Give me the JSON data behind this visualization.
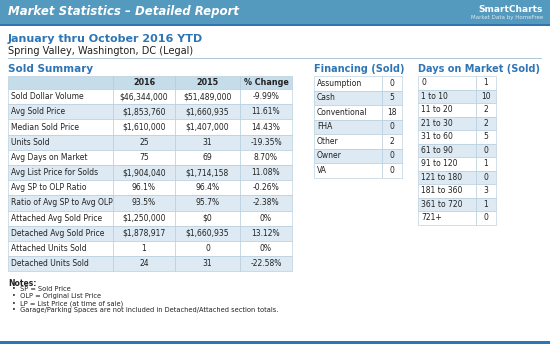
{
  "header_text": "Market Statistics – Detailed Report",
  "header_bg": "#4a8fba",
  "header_text_color": "#ffffff",
  "date_label": "January thru October 2016 YTD",
  "location_label": "Spring Valley, Washington, DC (Legal)",
  "sold_summary_title": "Sold Summary",
  "sold_headers": [
    "",
    "2016",
    "2015",
    "% Change"
  ],
  "sold_rows": [
    [
      "Sold Dollar Volume",
      "$46,344,000",
      "$51,489,000",
      "-9.99%"
    ],
    [
      "Avg Sold Price",
      "$1,853,760",
      "$1,660,935",
      "11.61%"
    ],
    [
      "Median Sold Price",
      "$1,610,000",
      "$1,407,000",
      "14.43%"
    ],
    [
      "Units Sold",
      "25",
      "31",
      "-19.35%"
    ],
    [
      "Avg Days on Market",
      "75",
      "69",
      "8.70%"
    ],
    [
      "Avg List Price for Solds",
      "$1,904,040",
      "$1,714,158",
      "11.08%"
    ],
    [
      "Avg SP to OLP Ratio",
      "96.1%",
      "96.4%",
      "-0.26%"
    ],
    [
      "Ratio of Avg SP to Avg OLP",
      "93.5%",
      "95.7%",
      "-2.38%"
    ],
    [
      "Attached Avg Sold Price",
      "$1,250,000",
      "$0",
      "0%"
    ],
    [
      "Detached Avg Sold Price",
      "$1,878,917",
      "$1,660,935",
      "13.12%"
    ],
    [
      "Attached Units Sold",
      "1",
      "0",
      "0%"
    ],
    [
      "Detached Units Sold",
      "24",
      "31",
      "-22.58%"
    ]
  ],
  "financing_title": "Financing (Sold)",
  "financing_rows": [
    [
      "Assumption",
      "0"
    ],
    [
      "Cash",
      "5"
    ],
    [
      "Conventional",
      "18"
    ],
    [
      "FHA",
      "0"
    ],
    [
      "Other",
      "2"
    ],
    [
      "Owner",
      "0"
    ],
    [
      "VA",
      "0"
    ]
  ],
  "dom_title": "Days on Market (Sold)",
  "dom_rows": [
    [
      "0",
      "1"
    ],
    [
      "1 to 10",
      "10"
    ],
    [
      "11 to 20",
      "2"
    ],
    [
      "21 to 30",
      "2"
    ],
    [
      "31 to 60",
      "5"
    ],
    [
      "61 to 90",
      "0"
    ],
    [
      "91 to 120",
      "1"
    ],
    [
      "121 to 180",
      "0"
    ],
    [
      "181 to 360",
      "3"
    ],
    [
      "361 to 720",
      "1"
    ],
    [
      "721+",
      "0"
    ]
  ],
  "notes": [
    "SP = Sold Price",
    "OLP = Original List Price",
    "LP = List Price (at time of sale)",
    "Garage/Parking Spaces are not included in Detached/Attached section totals."
  ],
  "table_header_bg": "#c5dcea",
  "table_row_alt_bg": "#ddeaf3",
  "table_row_bg": "#ffffff",
  "accent_color": "#2e75b6",
  "bg_color": "#ffffff",
  "border_color": "#b0c8d8",
  "text_color": "#222222",
  "title_color": "#2e75b6",
  "smartcharts_color": "#555555"
}
